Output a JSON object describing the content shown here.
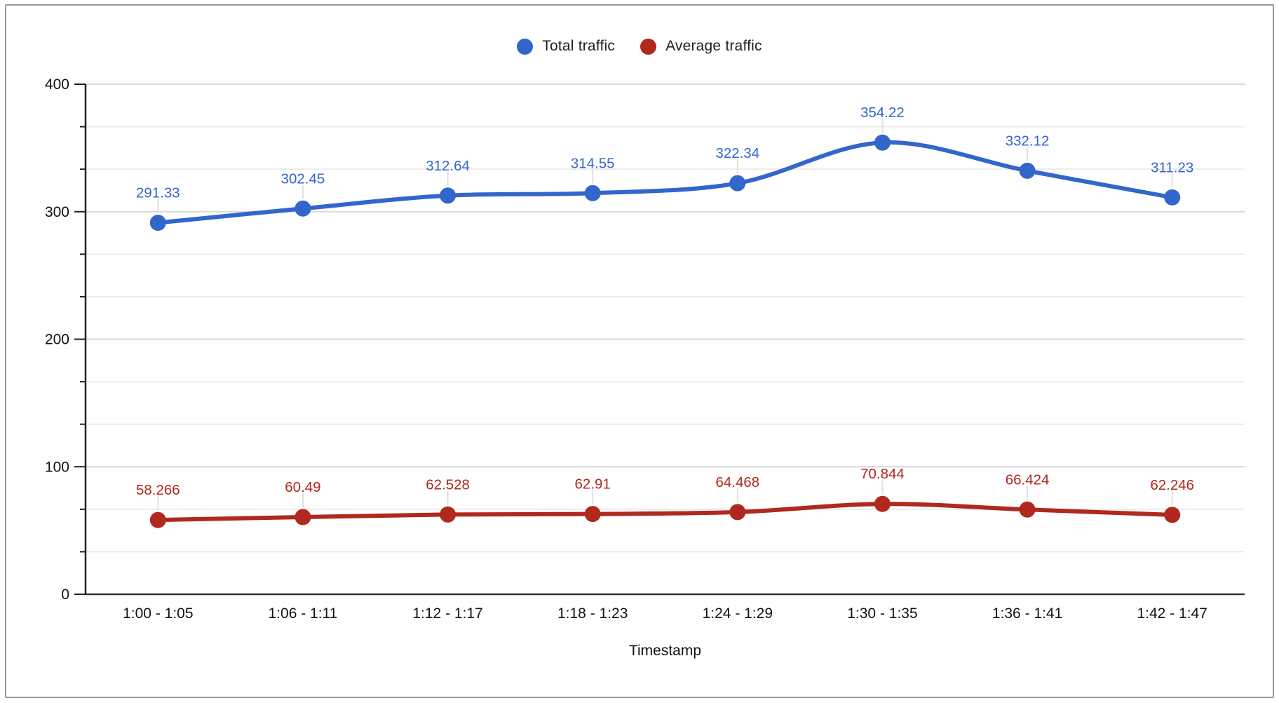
{
  "chart_data": {
    "type": "line",
    "smooth": true,
    "grid": true,
    "legend_position": "top",
    "xlabel": "Timestamp",
    "ylabel": "",
    "categories": [
      "1:00 - 1:05",
      "1:06 - 1:11",
      "1:12 - 1:17",
      "1:18 - 1:23",
      "1:24 - 1:29",
      "1:30 - 1:35",
      "1:36 - 1:41",
      "1:42 - 1:47"
    ],
    "series": [
      {
        "name": "Total traffic",
        "color": "#3366cc",
        "values": [
          291.33,
          302.45,
          312.64,
          314.55,
          322.34,
          354.22,
          332.12,
          311.23
        ],
        "labels": [
          "291.33",
          "302.45",
          "312.64",
          "314.55",
          "322.34",
          "354.22",
          "332.12",
          "311.23"
        ]
      },
      {
        "name": "Average traffic",
        "color": "#b0281e",
        "values": [
          58.266,
          60.49,
          62.528,
          62.91,
          64.468,
          70.844,
          66.424,
          62.246
        ],
        "labels": [
          "58.266",
          "60.49",
          "62.528",
          "62.91",
          "64.468",
          "70.844",
          "66.424",
          "62.246"
        ]
      }
    ],
    "ylim": [
      0,
      400
    ],
    "yticks": [
      0,
      100,
      200,
      300,
      400
    ],
    "ytick_labels": [
      "0",
      "100",
      "200",
      "300",
      "400"
    ],
    "minor_gridlines_between_majors": 2,
    "colors": {
      "major_gridline": "#d9d9d9",
      "minor_gridline": "#ececec",
      "axis_line": "#212121",
      "baseline": "#333333",
      "tick_text": "#111111",
      "leader_line": "#e0e0e0"
    }
  }
}
